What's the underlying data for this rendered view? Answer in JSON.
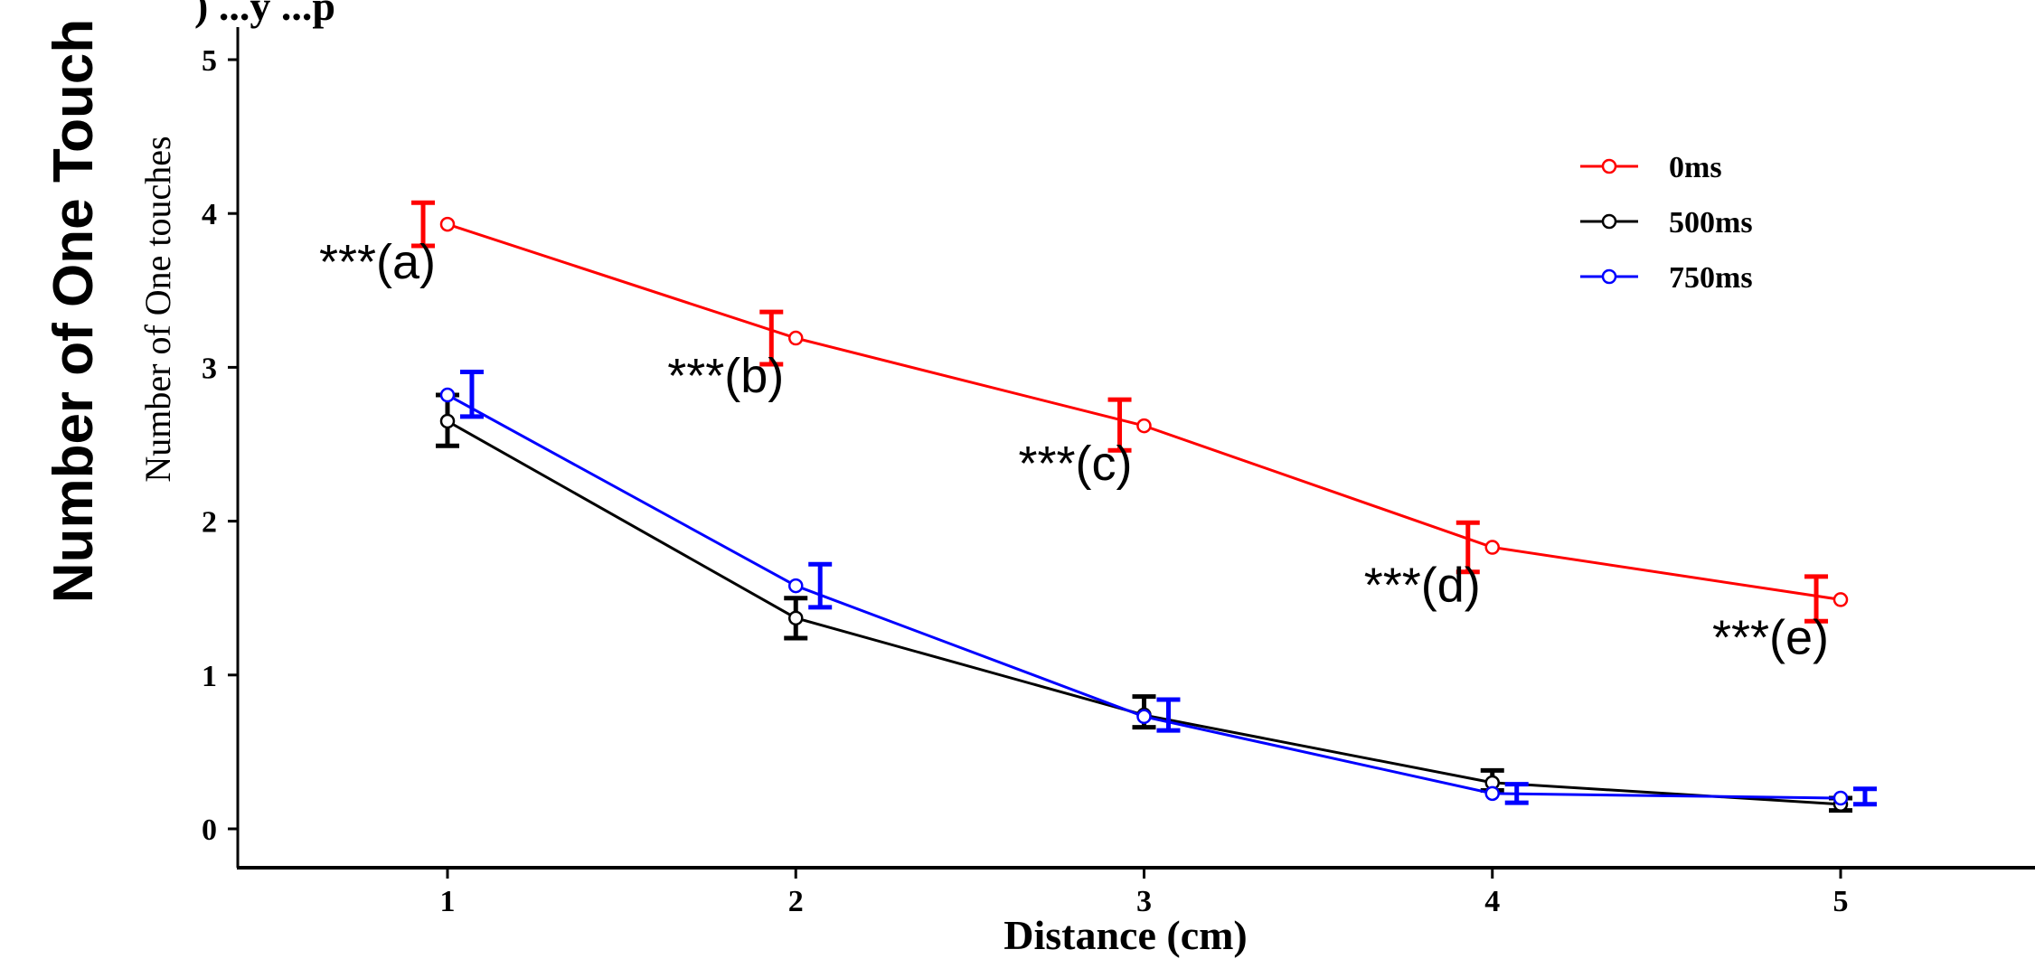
{
  "outer_label": "Number of One Touch",
  "title_fragment": ") ...y ...p",
  "chart_data": {
    "type": "line",
    "xlabel": "Distance (cm)",
    "ylabel": "Number of One touches",
    "x": [
      1,
      2,
      3,
      4,
      5
    ],
    "x_tick_labels": [
      "1",
      "2",
      "3",
      "4",
      "5"
    ],
    "y_tick_labels": [
      "0",
      "1",
      "2",
      "3",
      "4",
      "5"
    ],
    "xlim": [
      0.4,
      5.8
    ],
    "ylim": [
      -0.25,
      5.1
    ],
    "grid": false,
    "legend_position": "top-right",
    "series": [
      {
        "name": "0ms",
        "color": "#ff0000",
        "values": [
          3.93,
          3.19,
          2.62,
          1.83,
          1.49
        ],
        "err_lower": [
          3.79,
          3.02,
          2.46,
          1.67,
          1.35
        ],
        "err_upper": [
          4.07,
          3.36,
          2.79,
          1.99,
          1.64
        ],
        "err_x": [
          0.93,
          1.93,
          2.93,
          3.93,
          4.93
        ]
      },
      {
        "name": "500ms",
        "color": "#000000",
        "values": [
          2.65,
          1.37,
          0.74,
          0.3,
          0.16
        ],
        "err_lower": [
          2.49,
          1.24,
          0.66,
          0.25,
          0.12
        ],
        "err_upper": [
          2.82,
          1.5,
          0.86,
          0.38,
          0.2
        ],
        "err_x": [
          1.0,
          2.0,
          3.0,
          4.0,
          5.0
        ]
      },
      {
        "name": "750ms",
        "color": "#0000ff",
        "values": [
          2.82,
          1.58,
          0.73,
          0.23,
          0.2
        ],
        "err_lower": [
          2.68,
          1.44,
          0.64,
          0.17,
          0.16
        ],
        "err_upper": [
          2.97,
          1.72,
          0.84,
          0.29,
          0.26
        ],
        "err_x": [
          1.07,
          2.07,
          3.07,
          4.07,
          5.07
        ]
      }
    ],
    "annotations": [
      {
        "text": "***(a)",
        "x": 1,
        "y": 3.93
      },
      {
        "text": "***(b)",
        "x": 2,
        "y": 3.19
      },
      {
        "text": "***(c)",
        "x": 3,
        "y": 2.62
      },
      {
        "text": "***(d)",
        "x": 4,
        "y": 1.83
      },
      {
        "text": "***(e)",
        "x": 5,
        "y": 1.49
      }
    ]
  }
}
